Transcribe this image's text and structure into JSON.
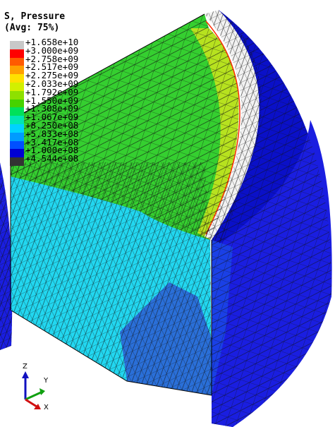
{
  "legend": {
    "title_line1": "S, Pressure",
    "title_line2": "(Avg: 75%)",
    "entries": [
      {
        "label": "+1.658e+10",
        "color": "#c8c8c8"
      },
      {
        "label": "+3.000e+09",
        "color": "#ff0000"
      },
      {
        "label": "+2.758e+09",
        "color": "#ff5a00"
      },
      {
        "label": "+2.517e+09",
        "color": "#ffa000"
      },
      {
        "label": "+2.275e+09",
        "color": "#ffe100"
      },
      {
        "label": "+2.033e+09",
        "color": "#d2f000"
      },
      {
        "label": "+1.792e+09",
        "color": "#8ee000"
      },
      {
        "label": "+1.550e+09",
        "color": "#46d200"
      },
      {
        "label": "+1.308e+09",
        "color": "#00e15a"
      },
      {
        "label": "+1.067e+09",
        "color": "#00e6b4"
      },
      {
        "label": "+8.250e+08",
        "color": "#00d2ff"
      },
      {
        "label": "+5.833e+08",
        "color": "#009bff"
      },
      {
        "label": "+3.417e+08",
        "color": "#0050ff"
      },
      {
        "label": "+1.000e+08",
        "color": "#0000d2"
      },
      {
        "label": "+4.544e+08",
        "color": "#333333"
      }
    ]
  },
  "triad": {
    "z": "Z",
    "y": "Y",
    "x": "X"
  },
  "colors": {
    "mesh_line": "#111111",
    "cyan": "#22d7f0",
    "light_cyan": "#33e6ee",
    "green": "#35cf30",
    "yellow_green": "#b7e21f",
    "white": "#f2f2f2",
    "blue": "#1a1ee0",
    "dark_blue": "#0a10c8",
    "mid_blue": "#2a6fd8"
  }
}
